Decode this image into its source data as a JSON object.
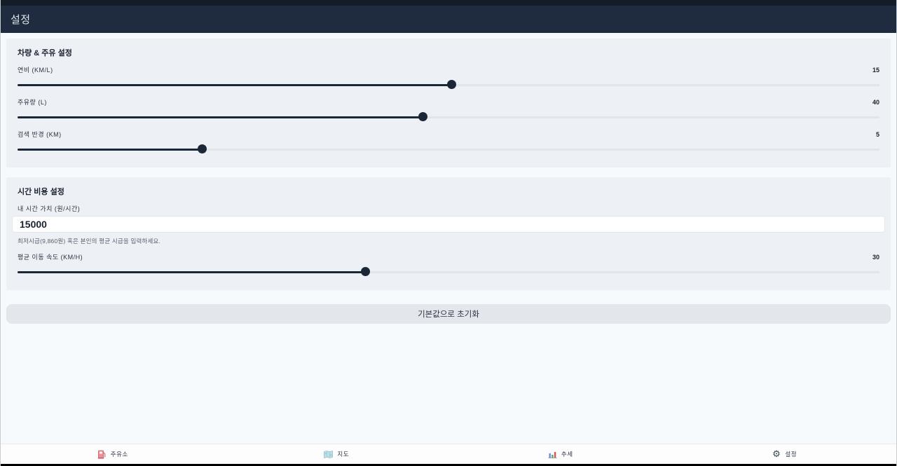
{
  "header": {
    "title": "설정"
  },
  "vehicle_section": {
    "title": "차량 & 주유 설정",
    "sliders": [
      {
        "label": "연비 (KM/L)",
        "value": "15",
        "percent": 50.4
      },
      {
        "label": "주유량 (L)",
        "value": "40",
        "percent": 47.0
      },
      {
        "label": "검색 반경 (KM)",
        "value": "5",
        "percent": 21.4
      }
    ]
  },
  "time_section": {
    "title": "시간 비용 설정",
    "time_value": {
      "label": "내 시간 가치 (원/시간)",
      "value": "15000",
      "helper": "최저시급(9,860원) 혹은 본인의 평균 시급을 입력하세요."
    },
    "speed_slider": {
      "label": "평균 이동 속도 (KM/H)",
      "value": "30",
      "percent": 40.4
    }
  },
  "reset_button": {
    "label": "기본값으로 초기화"
  },
  "bottom_nav": {
    "items": [
      {
        "label": "주유소",
        "icon": "fuel-pump-icon"
      },
      {
        "label": "지도",
        "icon": "map-icon"
      },
      {
        "label": "추세",
        "icon": "bar-chart-icon"
      },
      {
        "label": "설정",
        "icon": "gear-icon"
      }
    ],
    "gear_glyph": "⚙"
  },
  "colors": {
    "header_bg": "#1f2c3f",
    "status_strip_bg": "#141c2a",
    "page_bg": "#f7fafc",
    "card_bg": "#edf1f6",
    "slider_fill": "#1b2637",
    "slider_track": "#e1e5ea",
    "button_bg": "#e3e6ea",
    "nav_bg": "#fdfdfe"
  }
}
